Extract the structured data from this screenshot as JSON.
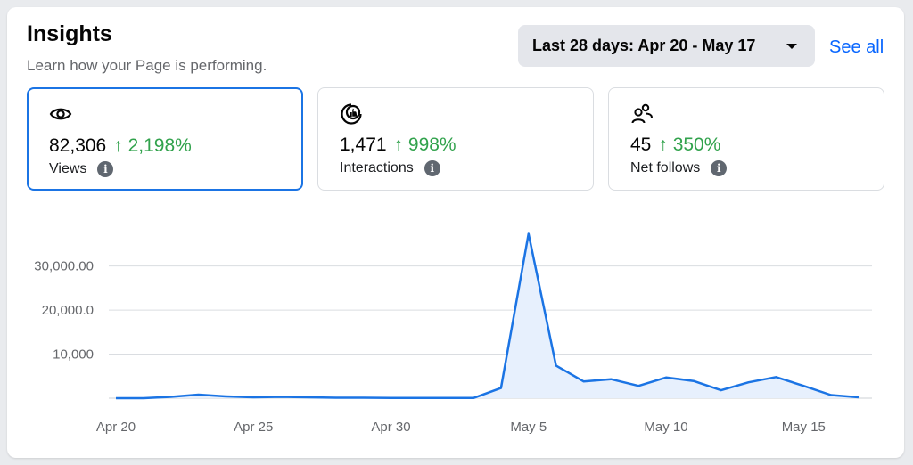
{
  "header": {
    "title": "Insights",
    "subtitle": "Learn how your Page is performing.",
    "date_range": "Last 28 days: Apr 20 - May 17",
    "see_all": "See all"
  },
  "metrics": [
    {
      "icon": "eye-icon",
      "value": "82,306",
      "change": "↑ 2,198%",
      "label": "Views",
      "active": true
    },
    {
      "icon": "interactions-icon",
      "value": "1,471",
      "change": "↑ 998%",
      "label": "Interactions",
      "active": false
    },
    {
      "icon": "people-icon",
      "value": "45",
      "change": "↑ 350%",
      "label": "Net follows",
      "active": false
    }
  ],
  "colors": {
    "line": "#1b74e4",
    "fill": "#e7f0fd",
    "positive": "#31a24c",
    "accent": "#0866ff"
  },
  "chart_data": {
    "type": "area",
    "ylim": [
      0,
      37000
    ],
    "y_ticks": [
      {
        "value": 10000,
        "label": "10,000"
      },
      {
        "value": 20000,
        "label": "20,000.0"
      },
      {
        "value": 30000,
        "label": "30,000.00"
      }
    ],
    "x_ticks": [
      {
        "index": 0,
        "label": "Apr 20"
      },
      {
        "index": 5,
        "label": "Apr 25"
      },
      {
        "index": 10,
        "label": "Apr 30"
      },
      {
        "index": 15,
        "label": "May 5"
      },
      {
        "index": 20,
        "label": "May 10"
      },
      {
        "index": 25,
        "label": "May 15"
      }
    ],
    "grid": true,
    "legend": "none",
    "series": [
      {
        "values": [
          0,
          0,
          300,
          800,
          400,
          200,
          300,
          200,
          100,
          100,
          50,
          50,
          50,
          50,
          2300,
          37300,
          7400,
          3800,
          4300,
          2800,
          4700,
          3900,
          1800,
          3600,
          4800,
          2800,
          700,
          200
        ]
      }
    ]
  }
}
